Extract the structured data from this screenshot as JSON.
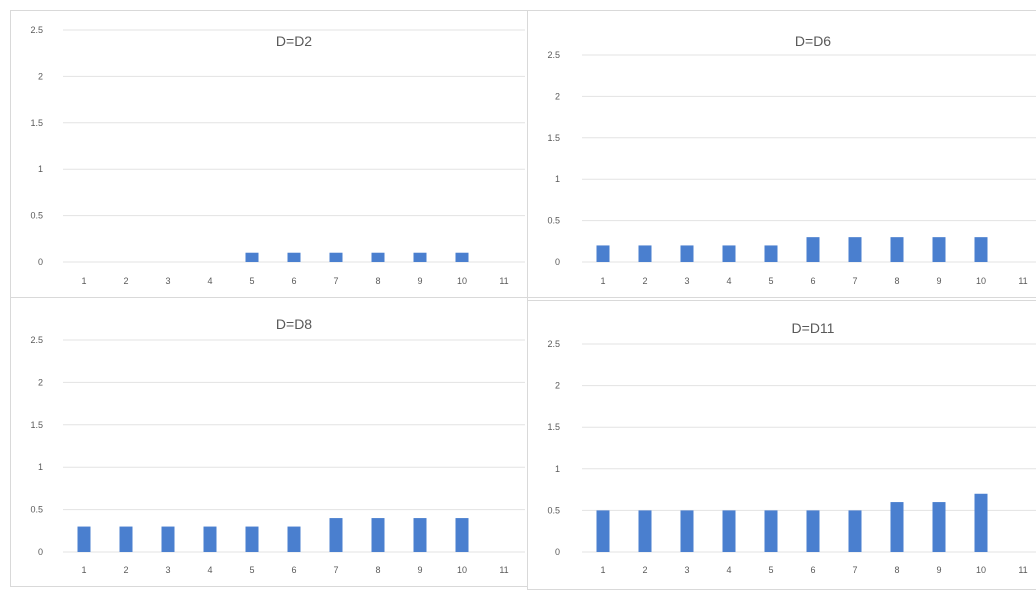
{
  "chart_data": [
    {
      "type": "bar",
      "title": "D=D2",
      "categories": [
        "1",
        "2",
        "3",
        "4",
        "5",
        "6",
        "7",
        "8",
        "9",
        "10",
        "11"
      ],
      "values": [
        0,
        0,
        0,
        0,
        0.1,
        0.1,
        0.1,
        0.1,
        0.1,
        0.1,
        0
      ],
      "ylim": [
        0,
        2.5
      ],
      "yticks": [
        "0",
        "0.5",
        "1",
        "1.5",
        "2",
        "2.5"
      ],
      "grid": true,
      "bar_color": "#4a7fcf"
    },
    {
      "type": "bar",
      "title": "D=D6",
      "categories": [
        "1",
        "2",
        "3",
        "4",
        "5",
        "6",
        "7",
        "8",
        "9",
        "10",
        "11"
      ],
      "values": [
        0.2,
        0.2,
        0.2,
        0.2,
        0.2,
        0.3,
        0.3,
        0.3,
        0.3,
        0.3,
        0
      ],
      "ylim": [
        0,
        2.5
      ],
      "yticks": [
        "0",
        "0.5",
        "1",
        "1.5",
        "2",
        "2.5"
      ],
      "grid": true,
      "bar_color": "#4a7fcf"
    },
    {
      "type": "bar",
      "title": "D=D8",
      "categories": [
        "1",
        "2",
        "3",
        "4",
        "5",
        "6",
        "7",
        "8",
        "9",
        "10",
        "11"
      ],
      "values": [
        0.3,
        0.3,
        0.3,
        0.3,
        0.3,
        0.3,
        0.4,
        0.4,
        0.4,
        0.4,
        0
      ],
      "ylim": [
        0,
        2.5
      ],
      "yticks": [
        "0",
        "0.5",
        "1",
        "1.5",
        "2",
        "2.5"
      ],
      "grid": true,
      "bar_color": "#4a7fcf"
    },
    {
      "type": "bar",
      "title": "D=D11",
      "categories": [
        "1",
        "2",
        "3",
        "4",
        "5",
        "6",
        "7",
        "8",
        "9",
        "10",
        "11"
      ],
      "values": [
        0.5,
        0.5,
        0.5,
        0.5,
        0.5,
        0.5,
        0.5,
        0.6,
        0.6,
        0.7,
        0
      ],
      "ylim": [
        0,
        2.5
      ],
      "yticks": [
        "0",
        "0.5",
        "1",
        "1.5",
        "2",
        "2.5"
      ],
      "grid": true,
      "bar_color": "#4a7fcf"
    }
  ]
}
